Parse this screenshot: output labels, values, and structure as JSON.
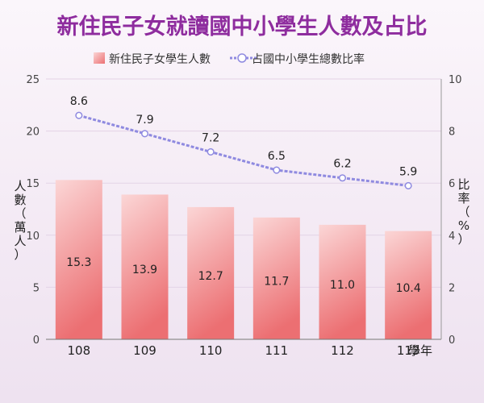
{
  "chart_data": {
    "type": "bar+line",
    "title": "新住民子女就讀國中小學生人數及占比",
    "categories": [
      "108",
      "109",
      "110",
      "111",
      "112",
      "113"
    ],
    "x_unit": "學年",
    "series": [
      {
        "name": "新住民子女學生人數",
        "type": "bar",
        "axis": "left",
        "values": [
          15.3,
          13.9,
          12.7,
          11.7,
          11.0,
          10.4
        ],
        "labels": [
          "15.3",
          "13.9",
          "12.7",
          "11.7",
          "11.0",
          "10.4"
        ]
      },
      {
        "name": "占國中小學生總數比率",
        "type": "line",
        "axis": "right",
        "values": [
          8.6,
          7.9,
          7.2,
          6.5,
          6.2,
          5.9
        ],
        "labels": [
          "8.6",
          "7.9",
          "7.2",
          "6.5",
          "6.2",
          "5.9"
        ]
      }
    ],
    "ylabel_left": "人數（萬人）",
    "ylabel_right": "比率（%）",
    "ylim_left": [
      0,
      25
    ],
    "yticks_left": [
      0,
      5,
      10,
      15,
      20,
      25
    ],
    "ylim_right": [
      0,
      10
    ],
    "yticks_right": [
      0,
      2,
      4,
      6,
      8,
      10
    ],
    "legend_position": "top-center",
    "colors": {
      "title": "#8e2c9e",
      "bar_top": "#f8c9c9",
      "bar_bottom": "#ec6f72",
      "line": "#8f8ae0",
      "marker_fill": "#ffffff"
    }
  }
}
